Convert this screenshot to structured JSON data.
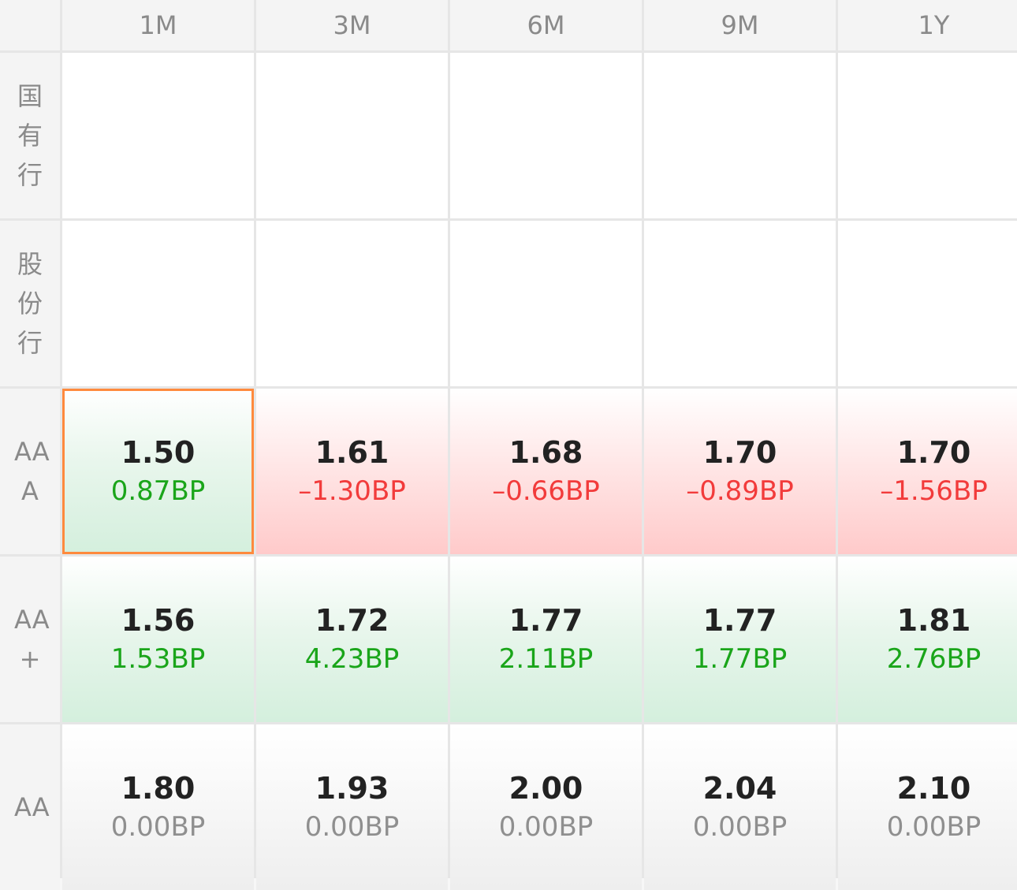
{
  "columns": [
    "1M",
    "3M",
    "6M",
    "9M",
    "1Y"
  ],
  "colors": {
    "up": "#f23b3b",
    "down": "#1aa51a",
    "flat": "#8f8f8f",
    "selected_border": "#ff8a3d"
  },
  "rows": [
    {
      "label": "国\n有\n行",
      "cells": [
        null,
        null,
        null,
        null,
        null
      ]
    },
    {
      "label": "股\n份\n行",
      "cells": [
        null,
        null,
        null,
        null,
        null
      ]
    },
    {
      "label": "AA\nA",
      "cells": [
        {
          "value": "1.50",
          "change": "0.87BP",
          "trend": "down",
          "selected": true
        },
        {
          "value": "1.61",
          "change": "–1.30BP",
          "trend": "up"
        },
        {
          "value": "1.68",
          "change": "–0.66BP",
          "trend": "up"
        },
        {
          "value": "1.70",
          "change": "–0.89BP",
          "trend": "up"
        },
        {
          "value": "1.70",
          "change": "–1.56BP",
          "trend": "up"
        }
      ]
    },
    {
      "label": "AA\n+",
      "cells": [
        {
          "value": "1.56",
          "change": "1.53BP",
          "trend": "down"
        },
        {
          "value": "1.72",
          "change": "4.23BP",
          "trend": "down"
        },
        {
          "value": "1.77",
          "change": "2.11BP",
          "trend": "down"
        },
        {
          "value": "1.77",
          "change": "1.77BP",
          "trend": "down"
        },
        {
          "value": "1.81",
          "change": "2.76BP",
          "trend": "down"
        }
      ]
    },
    {
      "label": "AA",
      "cells": [
        {
          "value": "1.80",
          "change": "0.00BP",
          "trend": "flat"
        },
        {
          "value": "1.93",
          "change": "0.00BP",
          "trend": "flat"
        },
        {
          "value": "2.00",
          "change": "0.00BP",
          "trend": "flat"
        },
        {
          "value": "2.04",
          "change": "0.00BP",
          "trend": "flat"
        },
        {
          "value": "2.10",
          "change": "0.00BP",
          "trend": "flat"
        }
      ]
    }
  ]
}
